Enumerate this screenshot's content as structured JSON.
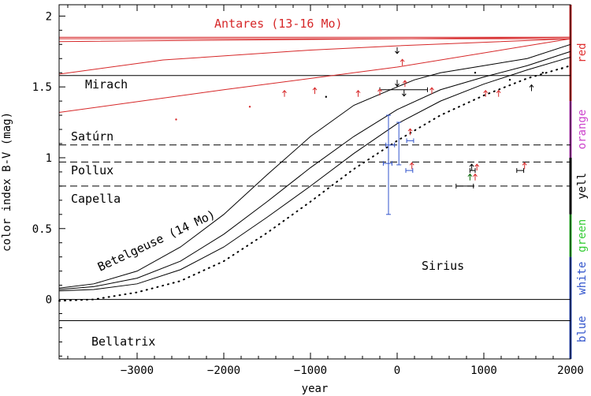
{
  "chart_data": {
    "type": "line",
    "xlabel": "year",
    "ylabel": "color index B-V (mag)",
    "xlim": [
      -3900,
      2000
    ],
    "ylim": [
      -0.42,
      2.08
    ],
    "x_ticks": [
      -3000,
      -2000,
      -1000,
      0,
      1000,
      2000
    ],
    "y_ticks": [
      0,
      0.5,
      1,
      1.5,
      2
    ],
    "reference_stars": [
      {
        "label": "Antares (13-16 Mo)",
        "value": 1.84,
        "style": "solid",
        "color": "#d62728"
      },
      {
        "label": "Mirach",
        "value": 1.58,
        "style": "solid",
        "color": "#000000"
      },
      {
        "label": "Satúrn",
        "value": 1.09,
        "style": "dashed",
        "color": "#000000"
      },
      {
        "label": "Pollux",
        "value": 0.97,
        "style": "dashed",
        "color": "#000000"
      },
      {
        "label": "Capella",
        "value": 0.8,
        "style": "dashed",
        "color": "#000000"
      },
      {
        "label": "Sirius",
        "value": 0.0,
        "style": "solid",
        "color": "#000000"
      },
      {
        "label": "Bellatrix",
        "value": -0.15,
        "style": "solid",
        "color": "#000000"
      }
    ],
    "track_labels": [
      {
        "label": "Betelgeuse (14 Mo)",
        "color": "#000000"
      }
    ],
    "color_bands": [
      {
        "label": "red",
        "from": 1.4,
        "to": 2.08,
        "color": "#e03030"
      },
      {
        "label": "orange",
        "from": 1.0,
        "to": 1.4,
        "color": "#cc44cc"
      },
      {
        "label": "yell",
        "from": 0.6,
        "to": 1.0,
        "color": "#000000"
      },
      {
        "label": "green",
        "from": 0.3,
        "to": 0.6,
        "color": "#33cc33"
      },
      {
        "label": "white",
        "from": 0.0,
        "to": 0.3,
        "color": "#3355cc"
      },
      {
        "label": "blue",
        "from": -0.42,
        "to": 0.0,
        "color": "#3355cc"
      }
    ],
    "series": [
      {
        "style": "solid",
        "color": "#d62728",
        "x": [
          -3900,
          2000
        ],
        "y": [
          1.85,
          1.85
        ]
      },
      {
        "style": "solid",
        "color": "#d62728",
        "x": [
          -3900,
          -2000,
          0,
          2000
        ],
        "y": [
          1.82,
          1.83,
          1.84,
          1.85
        ]
      },
      {
        "style": "solid",
        "color": "#d62728",
        "x": [
          -3900,
          -2700,
          -1000,
          0,
          2000
        ],
        "y": [
          1.59,
          1.69,
          1.76,
          1.79,
          1.84
        ]
      },
      {
        "style": "solid",
        "color": "#d62728",
        "x": [
          -3900,
          -2000,
          0,
          2000
        ],
        "y": [
          1.32,
          1.48,
          1.64,
          1.84
        ]
      },
      {
        "style": "solid",
        "color": "#000000",
        "x": [
          -3900,
          -3500,
          -3000,
          -2500,
          -2000,
          -1500,
          -1000,
          -500,
          0,
          200,
          500,
          1000,
          1500,
          2000
        ],
        "y": [
          0.08,
          0.11,
          0.2,
          0.37,
          0.6,
          0.88,
          1.15,
          1.37,
          1.5,
          1.55,
          1.6,
          1.65,
          1.7,
          1.8
        ]
      },
      {
        "style": "solid",
        "color": "#000000",
        "x": [
          -3900,
          -3500,
          -3000,
          -2500,
          -2000,
          -1500,
          -1000,
          -500,
          0,
          500,
          1000,
          1500,
          2000
        ],
        "y": [
          0.07,
          0.09,
          0.15,
          0.27,
          0.46,
          0.69,
          0.93,
          1.15,
          1.34,
          1.48,
          1.57,
          1.65,
          1.75
        ]
      },
      {
        "style": "solid",
        "color": "#000000",
        "x": [
          -3900,
          -3500,
          -3000,
          -2500,
          -2000,
          -1500,
          -1000,
          -500,
          0,
          500,
          1000,
          1500,
          2000
        ],
        "y": [
          0.06,
          0.07,
          0.11,
          0.21,
          0.37,
          0.58,
          0.8,
          1.03,
          1.24,
          1.4,
          1.52,
          1.62,
          1.71
        ]
      },
      {
        "style": "dotted",
        "color": "#000000",
        "x": [
          -3900,
          -3500,
          -3000,
          -2500,
          -2000,
          -1500,
          -1000,
          -500,
          0,
          500,
          1000,
          1500,
          2000
        ],
        "y": [
          -0.01,
          0.0,
          0.05,
          0.13,
          0.27,
          0.47,
          0.69,
          0.92,
          1.12,
          1.3,
          1.44,
          1.56,
          1.65
        ]
      }
    ],
    "points": [
      {
        "x": -2550,
        "y": 1.27,
        "color": "#d62728",
        "marker": "dot"
      },
      {
        "x": -1700,
        "y": 1.36,
        "color": "#d62728",
        "marker": "dot"
      },
      {
        "x": -1300,
        "y": 1.43,
        "color": "#d62728",
        "marker": "arrow-up"
      },
      {
        "x": -950,
        "y": 1.45,
        "color": "#d62728",
        "marker": "arrow-up"
      },
      {
        "x": -820,
        "y": 1.43,
        "color": "#000000",
        "marker": "dot"
      },
      {
        "x": -450,
        "y": 1.43,
        "color": "#d62728",
        "marker": "arrow-up"
      },
      {
        "x": -200,
        "y": 1.44,
        "color": "#d62728",
        "marker": "arrow-up"
      },
      {
        "x": 60,
        "y": 1.65,
        "color": "#d62728",
        "marker": "arrow-up"
      },
      {
        "x": 90,
        "y": 1.5,
        "color": "#d62728",
        "marker": "arrow-up"
      },
      {
        "x": 400,
        "y": 1.45,
        "color": "#d62728",
        "marker": "arrow-up"
      },
      {
        "x": 1020,
        "y": 1.43,
        "color": "#d62728",
        "marker": "arrow-up"
      },
      {
        "x": 1170,
        "y": 1.43,
        "color": "#d62728",
        "marker": "arrow-up"
      },
      {
        "x": 1550,
        "y": 1.47,
        "color": "#000000",
        "marker": "arrow-up"
      },
      {
        "x": 1300,
        "y": 1.55,
        "color": "#000000",
        "marker": "dot"
      },
      {
        "x": 1680,
        "y": 1.6,
        "color": "#000000",
        "marker": "dot"
      },
      {
        "x": 1900,
        "y": 1.63,
        "color": "#000000",
        "marker": "dot"
      },
      {
        "x": 900,
        "y": 1.6,
        "color": "#000000",
        "marker": "dot"
      },
      {
        "x": 0,
        "y": 1.78,
        "color": "#000000",
        "marker": "arrow-down"
      },
      {
        "x": 0,
        "y": 1.55,
        "color": "#000000",
        "marker": "arrow-down"
      },
      {
        "x": 80,
        "y": 1.48,
        "color": "#000000",
        "marker": "arrow-down"
      },
      {
        "x": 150,
        "y": 1.16,
        "color": "#d62728",
        "marker": "arrow-up"
      },
      {
        "x": 170,
        "y": 0.92,
        "color": "#d62728",
        "marker": "arrow-up"
      },
      {
        "x": 920,
        "y": 0.91,
        "color": "#d62728",
        "marker": "arrow-up"
      },
      {
        "x": 900,
        "y": 0.84,
        "color": "#d62728",
        "marker": "arrow-up"
      },
      {
        "x": 1470,
        "y": 0.92,
        "color": "#d62728",
        "marker": "arrow-up"
      },
      {
        "x": 840,
        "y": 0.84,
        "color": "#006400",
        "marker": "arrow-up"
      },
      {
        "x": 860,
        "y": 0.91,
        "color": "#000000",
        "marker": "arrow-up"
      }
    ],
    "error_bars": [
      {
        "x": -100,
        "y": 0.95,
        "ylow": 0.6,
        "yhigh": 1.3,
        "xlow": -100,
        "xhigh": -100,
        "color": "#3355cc"
      },
      {
        "x": 20,
        "y": 1.12,
        "ylow": 0.95,
        "yhigh": 1.25,
        "xlow": 20,
        "xhigh": 20,
        "color": "#3355cc"
      },
      {
        "x": -80,
        "y": 1.09,
        "ylow": 1.09,
        "yhigh": 1.09,
        "xlow": -130,
        "xhigh": -30,
        "color": "#3355cc"
      },
      {
        "x": 150,
        "y": 1.12,
        "ylow": 1.12,
        "yhigh": 1.12,
        "xlow": 110,
        "xhigh": 190,
        "color": "#3355cc"
      },
      {
        "x": 140,
        "y": 0.91,
        "ylow": 0.91,
        "yhigh": 0.91,
        "xlow": 100,
        "xhigh": 180,
        "color": "#3355cc"
      },
      {
        "x": -100,
        "y": 0.96,
        "ylow": 0.96,
        "yhigh": 0.96,
        "xlow": -160,
        "xhigh": -60,
        "color": "#3355cc"
      },
      {
        "x": 0,
        "y": 1.48,
        "ylow": 1.48,
        "yhigh": 1.48,
        "xlow": -200,
        "xhigh": 350,
        "color": "#000000"
      },
      {
        "x": 780,
        "y": 0.8,
        "ylow": 0.8,
        "yhigh": 0.8,
        "xlow": 680,
        "xhigh": 880,
        "color": "#000000"
      },
      {
        "x": 870,
        "y": 0.91,
        "ylow": 0.91,
        "yhigh": 0.91,
        "xlow": 840,
        "xhigh": 900,
        "color": "#000000"
      },
      {
        "x": 1420,
        "y": 0.91,
        "ylow": 0.91,
        "yhigh": 0.91,
        "xlow": 1380,
        "xhigh": 1460,
        "color": "#000000"
      }
    ]
  }
}
